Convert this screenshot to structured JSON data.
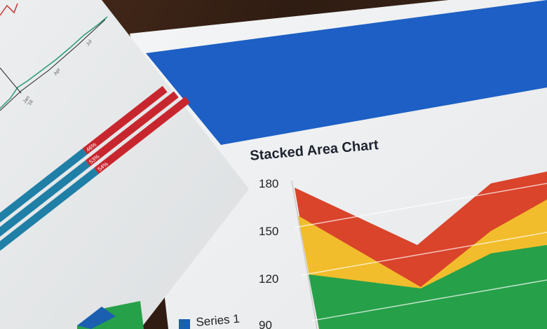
{
  "front_sheet": {
    "title": "Stacked Area Chart",
    "y_ticks": [
      "180",
      "150",
      "120",
      "90"
    ],
    "legend": "Series 1",
    "colors": {
      "header": "#1d5fc4",
      "red": "#d9442b",
      "yellow": "#f2bd2c",
      "green": "#27a04a",
      "series1": "#1a5fb0"
    }
  },
  "back_sheet": {
    "line_axis_labels": [
      "Jan",
      "'18",
      "Apr",
      "Jul"
    ],
    "bar_labels": [
      "46%",
      "53%",
      "54%"
    ],
    "colors": {
      "bar_red": "#c8262e",
      "bar_teal": "#1f7fa6",
      "line_green": "#2a9a7c"
    }
  }
}
